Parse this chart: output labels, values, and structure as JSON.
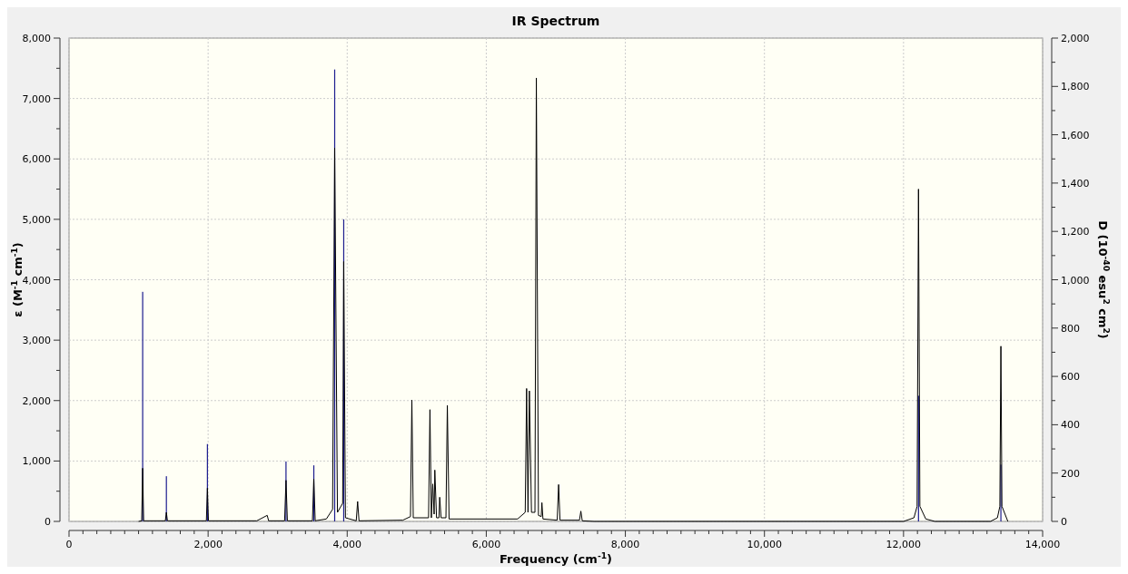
{
  "chart_data": {
    "type": "line",
    "title": "IR Spectrum",
    "xlabel": "Frequency (cm$^{-1}$)",
    "ylabel": "ε (M$^{-1}$ cm$^{-1}$)",
    "y2label": "D (10$^{-40}$ esu$^{2}$ cm$^{2}$)",
    "xlim": [
      0,
      14000
    ],
    "ylim": [
      0,
      8000
    ],
    "y2lim": [
      0,
      2000
    ],
    "xticks": [
      0,
      {
        "value": 200,
        "label": null
      },
      {
        "value": 400,
        "label": null
      },
      {
        "value": 600,
        "label": null
      },
      {
        "value": 800,
        "label": null
      },
      {
        "value": 1000,
        "label": null
      },
      {
        "value": 1200,
        "label": null
      },
      {
        "value": 1400,
        "label": null
      },
      {
        "value": 1600,
        "label": null
      },
      {
        "value": 1800,
        "label": null
      },
      {
        "value": 2000,
        "label": "2,000"
      },
      {
        "value": 2200,
        "label": null
      },
      {
        "value": 2400,
        "label": null
      },
      {
        "value": 2600,
        "label": null
      },
      {
        "value": 2800,
        "label": null
      },
      {
        "value": 3000,
        "label": null
      },
      {
        "value": 3200,
        "label": null
      },
      {
        "value": 3400,
        "label": null
      },
      {
        "value": 3600,
        "label": null
      },
      {
        "value": 3800,
        "label": null
      },
      {
        "value": 4000,
        "label": "4,000"
      },
      {
        "value": 4200,
        "label": null
      },
      {
        "value": 4400,
        "label": null
      },
      {
        "value": 4600,
        "label": null
      },
      {
        "value": 4800,
        "label": null
      },
      {
        "value": 5000,
        "label": null
      },
      {
        "value": 5200,
        "label": null
      },
      {
        "value": 5400,
        "label": null
      },
      {
        "value": 5600,
        "label": null
      },
      {
        "value": 5800,
        "label": null
      },
      {
        "value": 6000,
        "label": "6,000"
      },
      {
        "value": 6200,
        "label": null
      },
      {
        "value": 6400,
        "label": null
      },
      {
        "value": 6600,
        "label": null
      },
      {
        "value": 6800,
        "label": null
      },
      {
        "value": 7000,
        "label": null
      },
      {
        "value": 7200,
        "label": null
      },
      {
        "value": 7400,
        "label": null
      },
      {
        "value": 7600,
        "label": null
      },
      {
        "value": 7800,
        "label": null
      },
      {
        "value": 8000,
        "label": "8,000"
      },
      {
        "value": 8200,
        "label": null
      },
      {
        "value": 8400,
        "label": null
      },
      {
        "value": 8600,
        "label": null
      },
      {
        "value": 8800,
        "label": null
      },
      {
        "value": 9000,
        "label": null
      },
      {
        "value": 9200,
        "label": null
      },
      {
        "value": 9400,
        "label": null
      },
      {
        "value": 9600,
        "label": null
      },
      {
        "value": 9800,
        "label": null
      },
      {
        "value": 10000,
        "label": "10,000"
      },
      {
        "value": 10200,
        "label": null
      },
      {
        "value": 10400,
        "label": null
      },
      {
        "value": 10600,
        "label": null
      },
      {
        "value": 10800,
        "label": null
      },
      {
        "value": 11000,
        "label": null
      },
      {
        "value": 11200,
        "label": null
      },
      {
        "value": 11400,
        "label": null
      },
      {
        "value": 11600,
        "label": null
      },
      {
        "value": 11800,
        "label": null
      },
      {
        "value": 12000,
        "label": "12,000"
      },
      {
        "value": 12200,
        "label": null
      },
      {
        "value": 12400,
        "label": null
      },
      {
        "value": 12600,
        "label": null
      },
      {
        "value": 12800,
        "label": null
      },
      {
        "value": 13000,
        "label": null
      },
      {
        "value": 13200,
        "label": null
      },
      {
        "value": 13400,
        "label": null
      },
      {
        "value": 13600,
        "label": null
      },
      {
        "value": 13800,
        "label": null
      },
      {
        "value": 14000,
        "label": "14,000"
      }
    ],
    "yticks": [
      0,
      {
        "value": 500,
        "label": null
      },
      {
        "value": 1000,
        "label": "1,000"
      },
      {
        "value": 1500,
        "label": null
      },
      {
        "value": 2000,
        "label": "2,000"
      },
      {
        "value": 2500,
        "label": null
      },
      {
        "value": 3000,
        "label": "3,000"
      },
      {
        "value": 3500,
        "label": null
      },
      {
        "value": 4000,
        "label": "4,000"
      },
      {
        "value": 4500,
        "label": null
      },
      {
        "value": 5000,
        "label": "5,000"
      },
      {
        "value": 5500,
        "label": null
      },
      {
        "value": 6000,
        "label": "6,000"
      },
      {
        "value": 6500,
        "label": null
      },
      {
        "value": 7000,
        "label": "7,000"
      },
      {
        "value": 7500,
        "label": null
      },
      {
        "value": 8000,
        "label": "8,000"
      }
    ],
    "y2ticks": [
      0,
      {
        "value": 100,
        "label": null
      },
      200,
      {
        "value": 300,
        "label": null
      },
      400,
      {
        "value": 500,
        "label": null
      },
      600,
      {
        "value": 700,
        "label": null
      },
      800,
      {
        "value": 900,
        "label": null
      },
      {
        "value": 1000,
        "label": "1,000"
      },
      {
        "value": 1100,
        "label": null
      },
      {
        "value": 1200,
        "label": "1,200"
      },
      {
        "value": 1300,
        "label": null
      },
      {
        "value": 1400,
        "label": "1,400"
      },
      {
        "value": 1500,
        "label": null
      },
      {
        "value": 1600,
        "label": "1,600"
      },
      {
        "value": 1700,
        "label": null
      },
      {
        "value": 1800,
        "label": "1,800"
      },
      {
        "value": 1900,
        "label": null
      },
      {
        "value": 2000,
        "label": "2,000"
      }
    ],
    "grid": true,
    "marker": "none",
    "line_style": "solid",
    "series": [
      {
        "color": "#000000",
        "x": [
          1000,
          1045,
          1059,
          1073,
          1385,
          1400,
          1415,
          1975,
          1990,
          2005,
          2700,
          2850,
          2870,
          3100,
          3120,
          3140,
          3500,
          3520,
          3540,
          3700,
          3790,
          3820,
          3860,
          3935,
          3950,
          3975,
          4130,
          4150,
          4170,
          4800,
          4910,
          4930,
          4950,
          5170,
          5190,
          5210,
          5230,
          5250,
          5260,
          5285,
          5320,
          5330,
          5350,
          5420,
          5440,
          5465,
          6450,
          6560,
          6580,
          6600,
          6620,
          6650,
          6700,
          6720,
          6750,
          6790,
          6800,
          6815,
          7020,
          7040,
          7060,
          7340,
          7360,
          7380,
          7550,
          12000,
          12150,
          12195,
          12215,
          12235,
          12320,
          12450,
          13250,
          13350,
          13385,
          13400,
          13415,
          13500
        ],
        "values": [
          0,
          10,
          880,
          10,
          10,
          150,
          10,
          10,
          550,
          10,
          10,
          100,
          10,
          10,
          680,
          10,
          10,
          700,
          10,
          40,
          200,
          6180,
          150,
          300,
          4300,
          60,
          10,
          330,
          10,
          20,
          80,
          2010,
          60,
          60,
          1850,
          60,
          620,
          120,
          850,
          60,
          60,
          400,
          60,
          60,
          1920,
          40,
          40,
          150,
          2200,
          150,
          2160,
          150,
          150,
          7340,
          100,
          80,
          310,
          40,
          20,
          610,
          20,
          20,
          170,
          10,
          0,
          0,
          60,
          250,
          5500,
          250,
          40,
          0,
          0,
          60,
          250,
          2900,
          250,
          0
        ]
      },
      {
        "type": "bar",
        "axis": "y2",
        "color": "#1c1c8f",
        "x": [
          1059,
          1400,
          1990,
          3120,
          3520,
          3820,
          3950,
          12215,
          13400
        ],
        "values": [
          950,
          187,
          320,
          248,
          232,
          1870,
          1250,
          520,
          235
        ]
      }
    ]
  }
}
